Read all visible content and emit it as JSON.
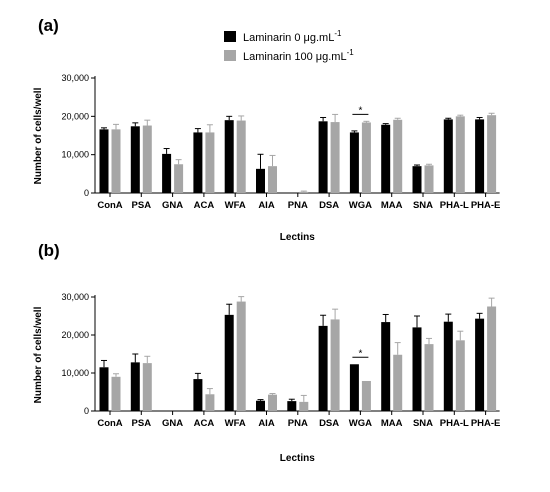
{
  "legend": {
    "entries": [
      {
        "label": "Laminarin 0 μg.mL",
        "superscript": "-1",
        "color": "#000000"
      },
      {
        "label": "Laminarin 100 μg.mL",
        "superscript": "-1",
        "color": "#a6a6a6"
      }
    ]
  },
  "chart_data": [
    {
      "type": "bar",
      "panel_label": "(a)",
      "xlabel": "Lectins",
      "ylabel": "Number of cells/well",
      "ylim": [
        0,
        30000
      ],
      "yticks": [
        0,
        10000,
        20000,
        30000
      ],
      "ytick_labels": [
        "0",
        "10,000",
        "20,000",
        "30,000"
      ],
      "grid": false,
      "legend_position": "top-center",
      "categories": [
        "ConA",
        "PSA",
        "GNA",
        "ACA",
        "WFA",
        "AIA",
        "PNA",
        "DSA",
        "WGA",
        "MAA",
        "SNA",
        "PHA-L",
        "PHA-E"
      ],
      "series": [
        {
          "name": "Laminarin 0 μg.mL-1",
          "color": "#000000",
          "values": [
            16600,
            17400,
            10200,
            15800,
            19000,
            6300,
            0,
            18700,
            15800,
            17800,
            7000,
            19200,
            19200
          ],
          "errors": [
            400,
            900,
            1400,
            1000,
            1000,
            3800,
            0,
            1000,
            400,
            300,
            300,
            300,
            500
          ]
        },
        {
          "name": "Laminarin 100 μg.mL-1",
          "color": "#a6a6a6",
          "values": [
            16600,
            17600,
            7500,
            15800,
            18900,
            7000,
            300,
            18500,
            18400,
            19100,
            7200,
            20000,
            20300
          ],
          "errors": [
            1300,
            1400,
            1200,
            2000,
            1200,
            2800,
            200,
            2000,
            300,
            400,
            300,
            300,
            500
          ]
        }
      ],
      "annotations": [
        {
          "category": "WGA",
          "text": "*"
        }
      ]
    },
    {
      "type": "bar",
      "panel_label": "(b)",
      "xlabel": "Lectins",
      "ylabel": "Number of cells/well",
      "ylim": [
        0,
        30000
      ],
      "yticks": [
        0,
        10000,
        20000,
        30000
      ],
      "ytick_labels": [
        "0",
        "10,000",
        "20,000",
        "30,000"
      ],
      "grid": false,
      "categories": [
        "ConA",
        "PSA",
        "GNA",
        "ACA",
        "WFA",
        "AIA",
        "PNA",
        "DSA",
        "WGA",
        "MAA",
        "SNA",
        "PHA-L",
        "PHA-E"
      ],
      "series": [
        {
          "name": "Laminarin 0 μg.mL-1",
          "color": "#000000",
          "values": [
            11500,
            12800,
            0,
            8400,
            25300,
            2700,
            2600,
            22400,
            12300,
            23400,
            22000,
            23500,
            24300
          ],
          "errors": [
            1800,
            2200,
            0,
            1500,
            2800,
            300,
            500,
            2800,
            0,
            2000,
            3000,
            2000,
            1400
          ]
        },
        {
          "name": "Laminarin 100 μg.mL-1",
          "color": "#a6a6a6",
          "values": [
            9000,
            12600,
            0,
            4400,
            28800,
            4300,
            2400,
            24100,
            7900,
            14800,
            17600,
            18600,
            27500
          ],
          "errors": [
            800,
            1800,
            0,
            1500,
            1300,
            300,
            1700,
            2700,
            0,
            3200,
            1500,
            2400,
            2200
          ]
        }
      ],
      "annotations": [
        {
          "category": "WGA",
          "text": "*"
        }
      ]
    }
  ]
}
